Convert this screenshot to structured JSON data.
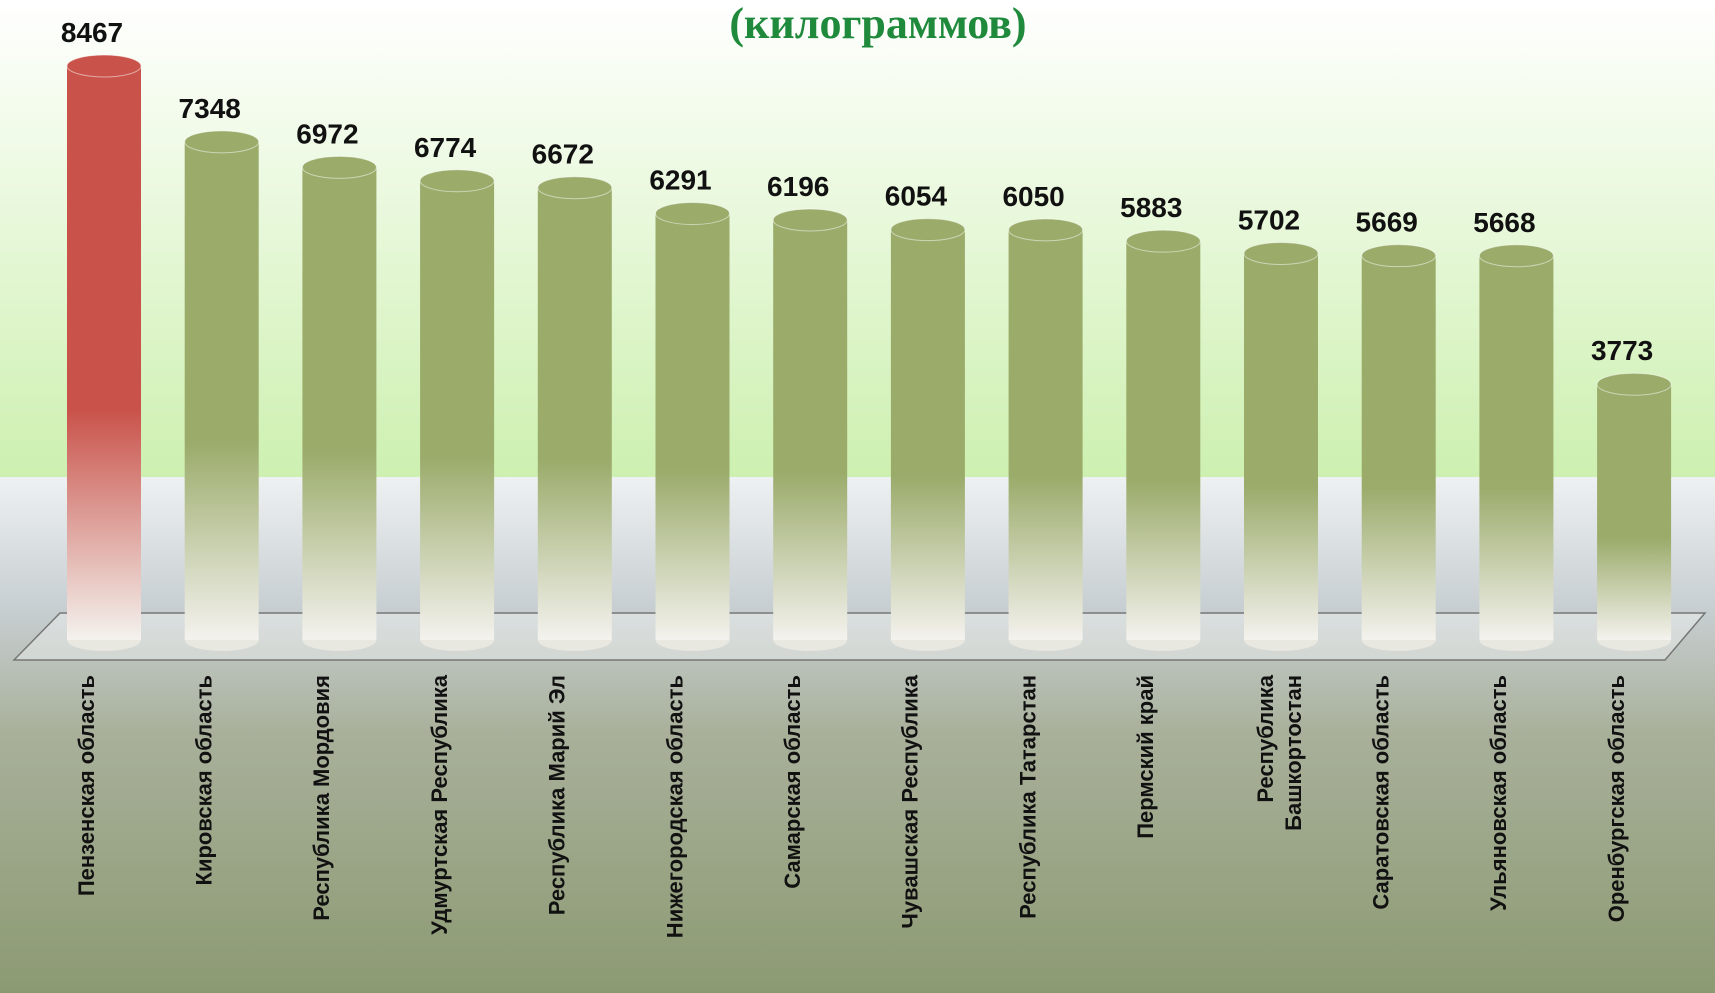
{
  "chart_data": {
    "type": "cylinder-bar",
    "title": "(килограммов)",
    "categories": [
      "Пензенская область",
      "Кировская область",
      "Республика Мордовия",
      "Удмуртская Республика",
      "Республика  Марий Эл",
      "Нижегородская область",
      "Самарская область",
      "Чувашская Республика",
      "Республика Татарстан",
      "Пермский край",
      "Республика\nБашкортостан",
      "Саратовская область",
      "Ульяновская область",
      "Оренбургская область"
    ],
    "values": [
      8467,
      7348,
      6972,
      6774,
      6672,
      6291,
      6196,
      6054,
      6050,
      5883,
      5702,
      5669,
      5668,
      3773
    ],
    "colors": [
      "#c9534b",
      "#9aab6a",
      "#9aab6a",
      "#9aab6a",
      "#9aab6a",
      "#9aab6a",
      "#9aab6a",
      "#9aab6a",
      "#9aab6a",
      "#9aab6a",
      "#9aab6a",
      "#9aab6a",
      "#9aab6a",
      "#9aab6a"
    ]
  }
}
